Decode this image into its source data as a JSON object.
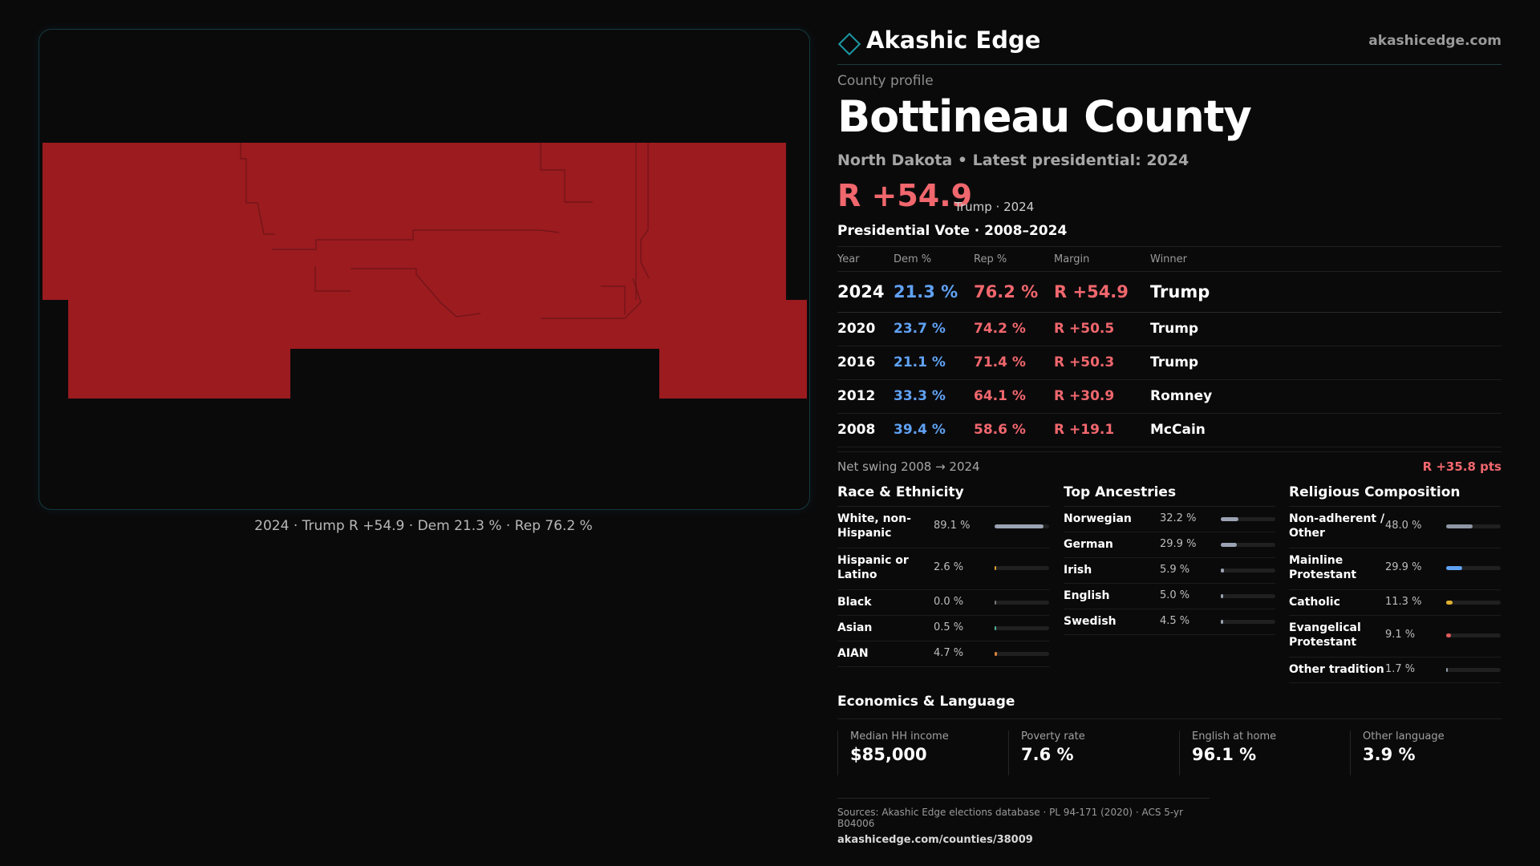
{
  "map": {
    "fill_color": "#9b1b1f",
    "caption": "2024 · Trump R +54.9 · Dem 21.3 % · Rep 76.2 %"
  },
  "brand": {
    "name": "Akashic Edge",
    "url": "akashicedge.com",
    "icon": "diamond-icon"
  },
  "profile": {
    "eyebrow": "County profile",
    "title": "Bottineau County",
    "subtitle": "North Dakota • Latest presidential: 2024",
    "headline_margin": "R +54.9",
    "headline_winner": "Trump · 2024"
  },
  "vote": {
    "section_title": "Presidential Vote · 2008–2024",
    "headers": [
      "Year",
      "Dem %",
      "Rep %",
      "Margin",
      "Winner"
    ],
    "rows": [
      {
        "year": "2024",
        "dem": "21.3 %",
        "rep": "76.2 %",
        "margin": "R +54.9",
        "winner": "Trump"
      },
      {
        "year": "2020",
        "dem": "23.7 %",
        "rep": "74.2 %",
        "margin": "R +50.5",
        "winner": "Trump"
      },
      {
        "year": "2016",
        "dem": "21.1 %",
        "rep": "71.4 %",
        "margin": "R +50.3",
        "winner": "Trump"
      },
      {
        "year": "2012",
        "dem": "33.3 %",
        "rep": "64.1 %",
        "margin": "R +30.9",
        "winner": "Romney"
      },
      {
        "year": "2008",
        "dem": "39.4 %",
        "rep": "58.6 %",
        "margin": "R +19.1",
        "winner": "McCain"
      }
    ],
    "swing_label": "Net swing 2008 → 2024",
    "swing_value": "R +35.8 pts"
  },
  "race": {
    "title": "Race & Ethnicity",
    "items": [
      {
        "label": "White, non-Hispanic",
        "value": "89.1 %",
        "pct": 89.1,
        "color": "#9aa3b2"
      },
      {
        "label": "Hispanic or Latino",
        "value": "2.6 %",
        "pct": 2.6,
        "color": "#e0a030"
      },
      {
        "label": "Black",
        "value": "0.0 %",
        "pct": 0.0,
        "color": "#7a7a7a"
      },
      {
        "label": "Asian",
        "value": "0.5 %",
        "pct": 0.5,
        "color": "#4fb39a"
      },
      {
        "label": "AIAN",
        "value": "4.7 %",
        "pct": 4.7,
        "color": "#d9823a"
      }
    ]
  },
  "ancestry": {
    "title": "Top Ancestries",
    "items": [
      {
        "label": "Norwegian",
        "value": "32.2 %",
        "pct": 32.2,
        "color": "#9aa3b2"
      },
      {
        "label": "German",
        "value": "29.9 %",
        "pct": 29.9,
        "color": "#9aa3b2"
      },
      {
        "label": "Irish",
        "value": "5.9 %",
        "pct": 5.9,
        "color": "#9aa3b2"
      },
      {
        "label": "English",
        "value": "5.0 %",
        "pct": 5.0,
        "color": "#9aa3b2"
      },
      {
        "label": "Swedish",
        "value": "4.5 %",
        "pct": 4.5,
        "color": "#9aa3b2"
      }
    ]
  },
  "religion": {
    "title": "Religious Composition",
    "items": [
      {
        "label": "Non-adherent / Other",
        "value": "48.0 %",
        "pct": 48.0,
        "color": "#8f97a6"
      },
      {
        "label": "Mainline Protestant",
        "value": "29.9 %",
        "pct": 29.9,
        "color": "#5fa2f4"
      },
      {
        "label": "Catholic",
        "value": "11.3 %",
        "pct": 11.3,
        "color": "#e0b030"
      },
      {
        "label": "Evangelical Protestant",
        "value": "9.1 %",
        "pct": 9.1,
        "color": "#e05a5a"
      },
      {
        "label": "Other tradition",
        "value": "1.7 %",
        "pct": 1.7,
        "color": "#8f97a6"
      }
    ]
  },
  "economics": {
    "title": "Economics & Language",
    "cells": [
      {
        "label": "Median HH income",
        "value": "$85,000"
      },
      {
        "label": "Poverty rate",
        "value": "7.6 %"
      },
      {
        "label": "English at home",
        "value": "96.1 %"
      },
      {
        "label": "Other language",
        "value": "3.9 %"
      }
    ]
  },
  "sources": {
    "line": "Sources: Akashic Edge elections database · PL 94-171 (2020) · ACS 5-yr B04006",
    "url": "akashicedge.com/counties/38009"
  }
}
